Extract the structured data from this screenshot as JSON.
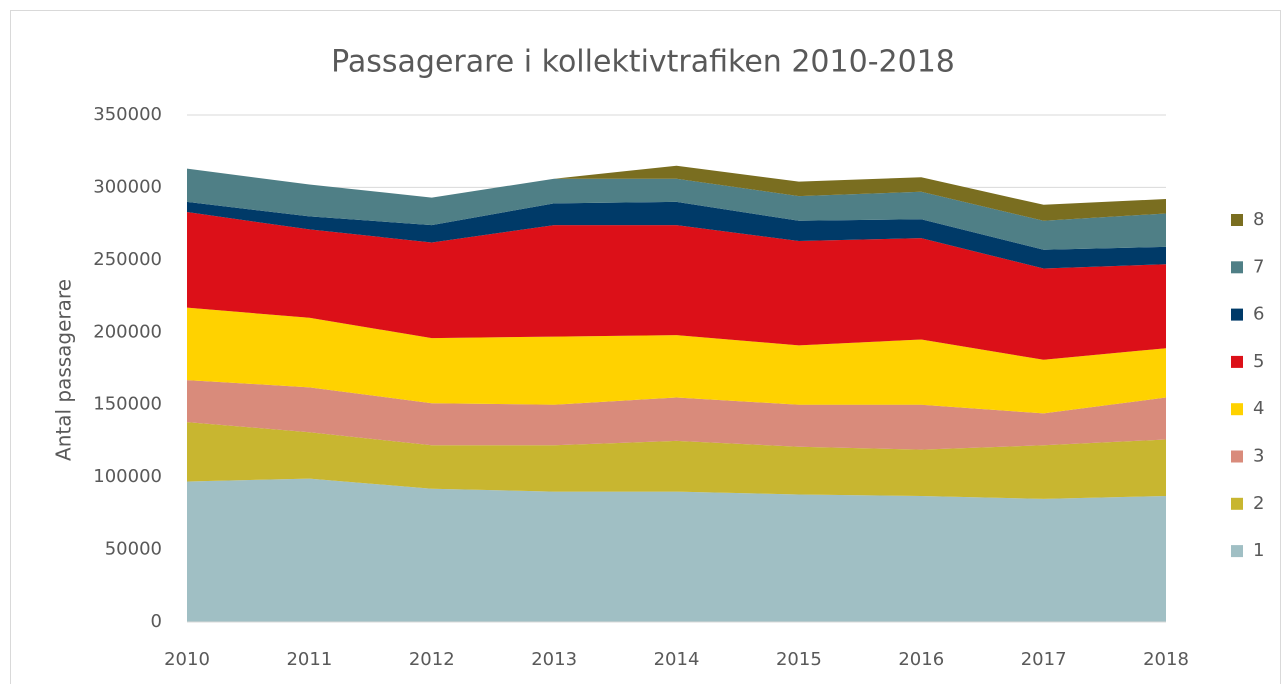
{
  "chart_data": {
    "type": "stacked_area",
    "title": "Passagerare i kollektivtrafiken 2010-2018",
    "y_label": "Antal passagerare",
    "categories": [
      "2010",
      "2011",
      "2012",
      "2013",
      "2014",
      "2015",
      "2016",
      "2017",
      "2018"
    ],
    "series": [
      {
        "name": "1",
        "color": "#a0bfc4",
        "values": [
          97000,
          99000,
          92000,
          90000,
          90000,
          88000,
          87000,
          85000,
          87000
        ]
      },
      {
        "name": "2",
        "color": "#c8b630",
        "values": [
          41000,
          32000,
          30000,
          32000,
          35000,
          33000,
          32000,
          37000,
          39000
        ]
      },
      {
        "name": "3",
        "color": "#d98b7b",
        "values": [
          29000,
          31000,
          29000,
          28000,
          30000,
          29000,
          31000,
          22000,
          29000
        ]
      },
      {
        "name": "4",
        "color": "#ffd200",
        "values": [
          50000,
          48000,
          45000,
          47000,
          43000,
          41000,
          45000,
          37000,
          34000
        ]
      },
      {
        "name": "5",
        "color": "#dc1018",
        "values": [
          66000,
          61000,
          66000,
          77000,
          76000,
          72000,
          70000,
          63000,
          58000
        ]
      },
      {
        "name": "6",
        "color": "#003a68",
        "values": [
          7000,
          9000,
          12000,
          15000,
          16000,
          14000,
          13000,
          13000,
          12000
        ]
      },
      {
        "name": "7",
        "color": "#4f7f86",
        "values": [
          23000,
          22000,
          19000,
          17000,
          16000,
          17000,
          19000,
          20000,
          23000
        ]
      },
      {
        "name": "8",
        "color": "#7a6e20",
        "values": [
          0,
          0,
          0,
          0,
          9000,
          10000,
          10000,
          11000,
          10000
        ]
      }
    ],
    "ylim": [
      0,
      350000
    ],
    "yticks": [
      0,
      50000,
      100000,
      150000,
      200000,
      250000,
      300000,
      350000
    ],
    "grid": true,
    "legend": "right"
  }
}
